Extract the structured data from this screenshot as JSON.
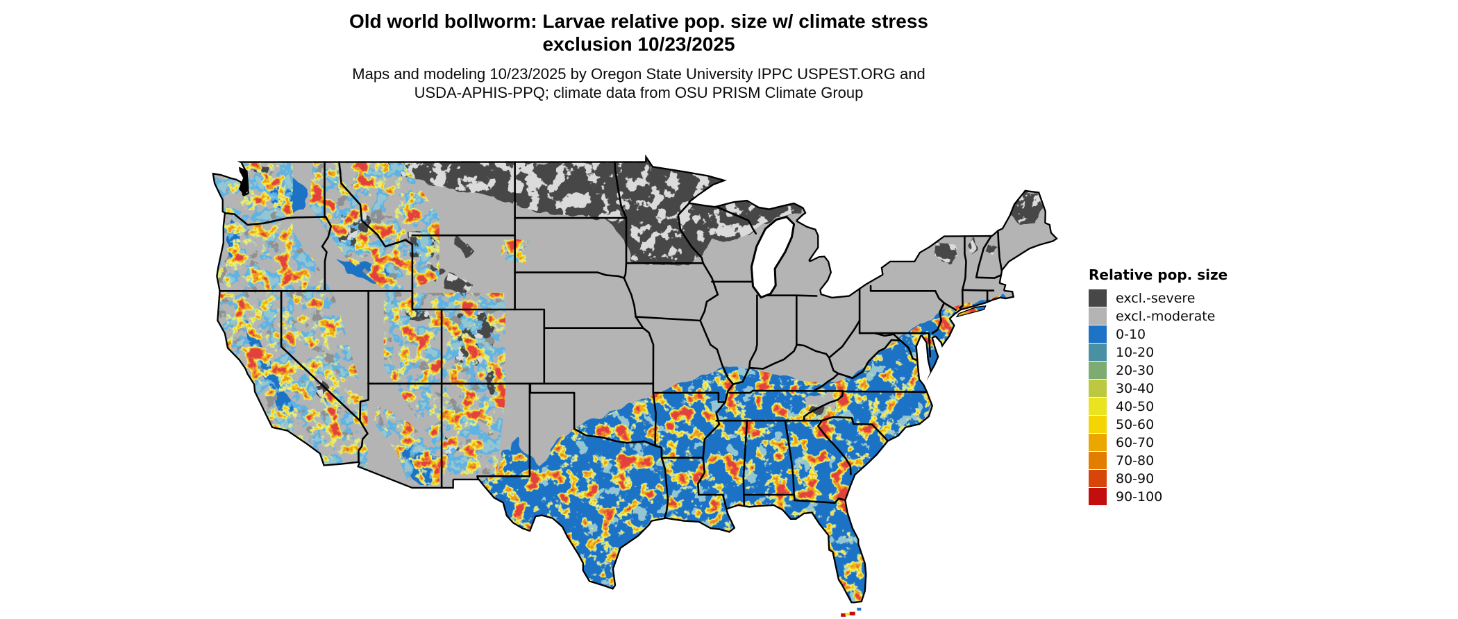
{
  "header": {
    "title_line1": "Old world bollworm: Larvae relative pop. size w/ climate stress",
    "title_line2": "exclusion 10/23/2025",
    "subtitle_line1": "Maps and modeling 10/23/2025 by Oregon State University IPPC USPEST.ORG and",
    "subtitle_line2": "USDA-APHIS-PPQ; climate data from OSU PRISM Climate Group"
  },
  "legend": {
    "title": "Relative pop. size",
    "items": [
      {
        "label": "excl.-severe",
        "color": "#474747"
      },
      {
        "label": "excl.-moderate",
        "color": "#b4b4b4"
      },
      {
        "label": "0-10",
        "color": "#1d73c6"
      },
      {
        "label": "10-20",
        "color": "#4a90a4"
      },
      {
        "label": "20-30",
        "color": "#7dab72"
      },
      {
        "label": "30-40",
        "color": "#bcc940"
      },
      {
        "label": "40-50",
        "color": "#e9e41f"
      },
      {
        "label": "50-60",
        "color": "#f4d503"
      },
      {
        "label": "60-70",
        "color": "#eca600"
      },
      {
        "label": "70-80",
        "color": "#e27d00"
      },
      {
        "label": "80-90",
        "color": "#d84508"
      },
      {
        "label": "90-100",
        "color": "#c40d0d"
      }
    ]
  }
}
